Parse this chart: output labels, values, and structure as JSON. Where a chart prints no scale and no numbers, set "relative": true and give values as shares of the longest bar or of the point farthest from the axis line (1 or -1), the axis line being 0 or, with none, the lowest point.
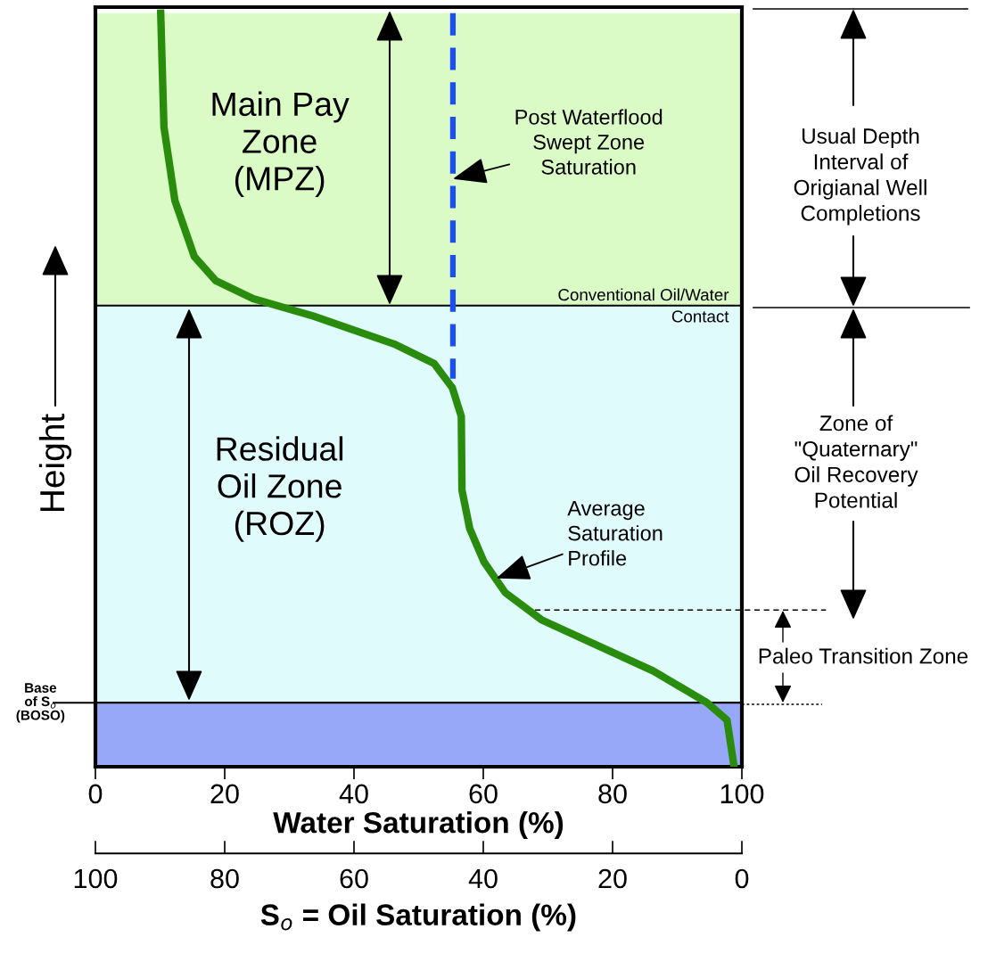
{
  "chart_data": {
    "type": "line",
    "relative": true,
    "xlabel": "Water Saturation (%)",
    "ylabel": "Height",
    "x2label": "S$_{o}$ = Oil Saturation (%)",
    "xlim": [
      0,
      100
    ],
    "xticks": [
      0,
      20,
      40,
      60,
      80,
      100
    ],
    "x2lim": [
      100,
      0
    ],
    "x2ticks": [
      100,
      80,
      60,
      40,
      20,
      0
    ],
    "tick_labels": "x",
    "grid": false,
    "legend": false,
    "marker": "none",
    "series": [
      {
        "color": "#2a8c0c",
        "line_style": "solid",
        "x": [
          10.1,
          10.6,
          12.3,
          15.3,
          18.6,
          24.4,
          33.7,
          46.2,
          52.4,
          55.2,
          56.6,
          56.7,
          57.9,
          60.1,
          63.4,
          69.0,
          86.3,
          94.6,
          97.7,
          98.8
        ],
        "values": [
          1.0,
          0.849,
          0.751,
          0.677,
          0.645,
          0.621,
          0.598,
          0.561,
          0.535,
          0.503,
          0.465,
          0.367,
          0.316,
          0.272,
          0.231,
          0.195,
          0.127,
          0.085,
          0.062,
          0.0
        ]
      },
      {
        "color": "#1a4ff5",
        "line_style": "dashed",
        "x": [
          55.3,
          55.3
        ],
        "values": [
          1.0,
          0.515
        ]
      }
    ],
    "bands": [
      {
        "axis": "y",
        "from": 0.612,
        "to": 1.0,
        "color": "#dbfbc6",
        "label": "Main Pay\nZone\n(MPZ)"
      },
      {
        "axis": "y",
        "from": 0.085,
        "to": 0.612,
        "color": "#e0fbfc",
        "label": "Residual\nOil Zone\n(ROZ)"
      },
      {
        "axis": "y",
        "from": 0.0,
        "to": 0.085,
        "color": "#98a8f9"
      }
    ],
    "ref_lines": [
      {
        "axis": "y",
        "value": 0.612,
        "label": "Conventional Oil/Water\nContact",
        "color": "#000000",
        "line_style": "solid"
      },
      {
        "axis": "y",
        "value": 0.085,
        "label": "Base\nof S$_{o}$\n(BOSO)",
        "color": "#000000",
        "line_style": "solid"
      },
      {
        "axis": "y",
        "value": 0.208,
        "color": "#000000",
        "line_style": "dashed"
      }
    ],
    "annotations": [
      {
        "text": "Post Waterflood\nSwept Zone\nSaturation",
        "x": 55.3,
        "y": 0.78
      },
      {
        "text": "Average\nSaturation\nProfile",
        "x": 62.0,
        "y": 0.25
      },
      "Usual Depth\nInterval of\nOrigianal Well\nCompletions",
      "Zone of\n\"Quaternary\"\nOil Recovery\nPotential",
      "Paleo Transition Zone"
    ]
  }
}
